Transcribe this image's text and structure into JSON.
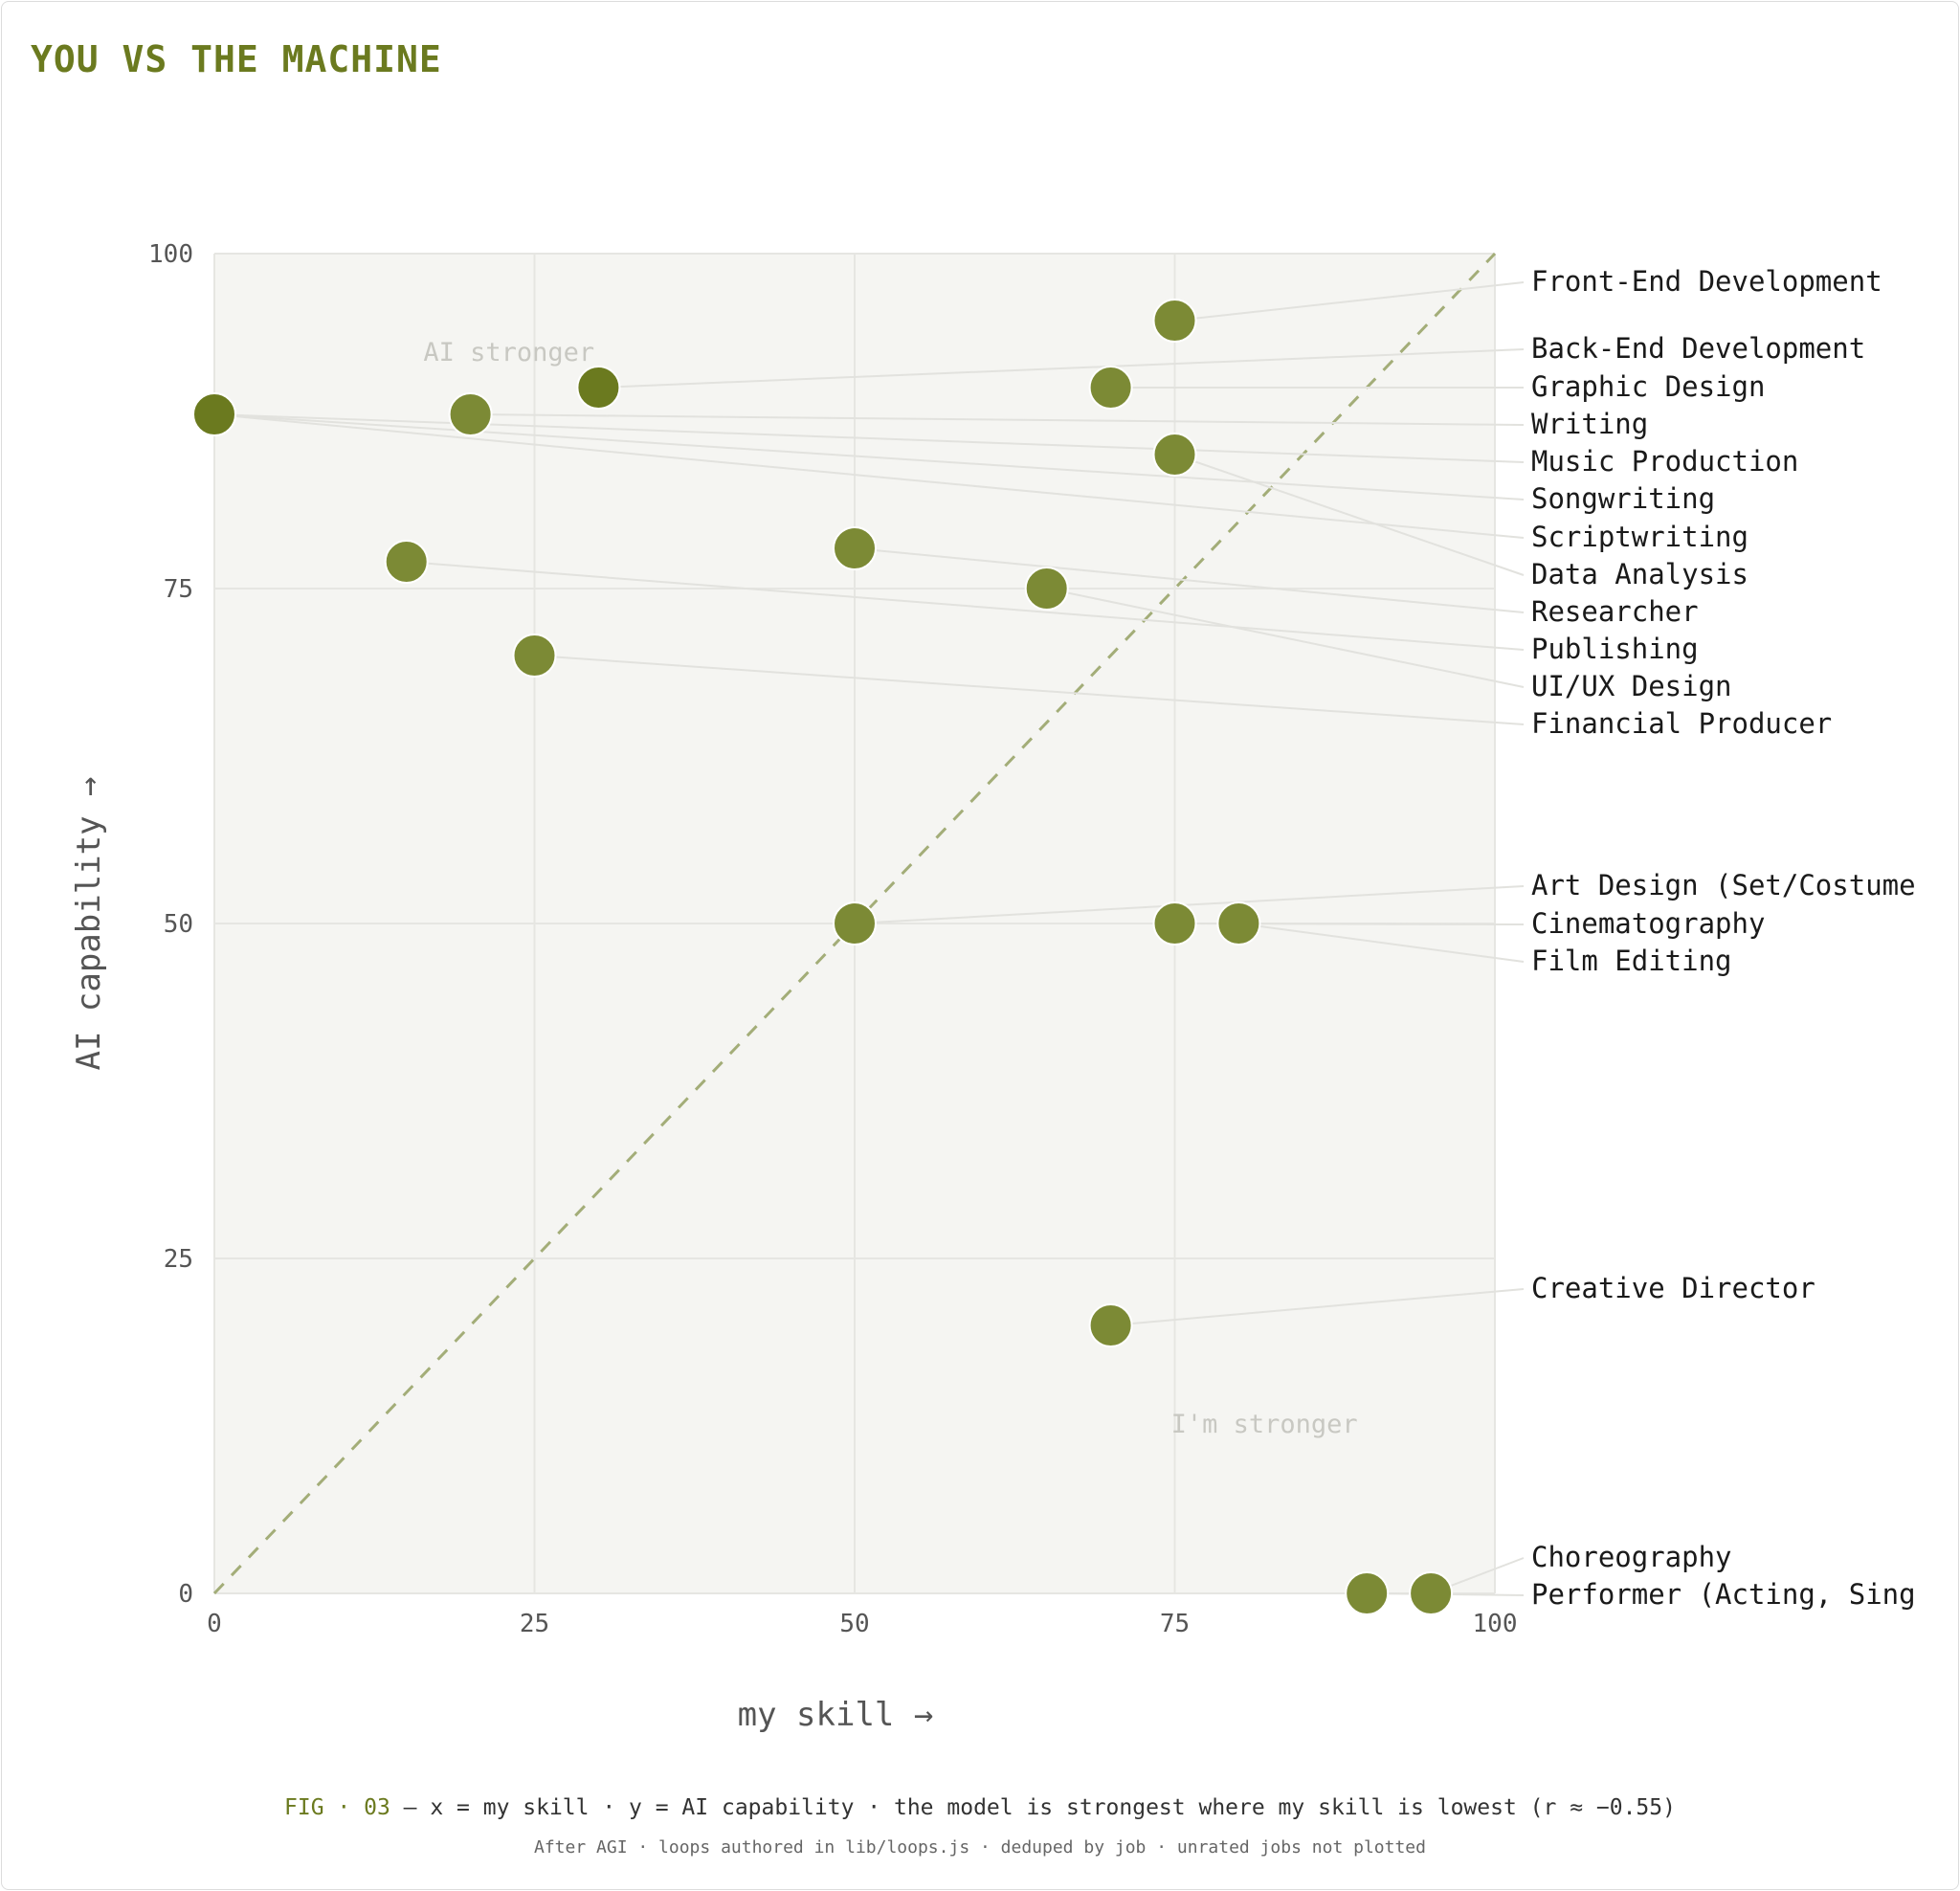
{
  "page": {
    "title": "YOU VS THE MACHINE",
    "caption_fig": "FIG · 03",
    "caption_text": " — x = my skill · y = AI capability · the model is strongest where my skill is lowest (r ≈ −0.55)",
    "footnote": "After AGI · loops authored in lib/loops.js · deduped by job · unrated jobs not plotted"
  },
  "colors": {
    "accent": "#6b7a1f",
    "point": "#7c8a35",
    "point_dark": "#6b7a1f",
    "diagonal": "#a3ad78",
    "plot_bg": "#f5f5f2",
    "grid": "#e6e6e2",
    "quadrant_text": "#c8c8c2"
  },
  "chart_data": {
    "type": "scatter",
    "xlabel": "my skill →",
    "ylabel": "AI capability →",
    "xlim": [
      0,
      100
    ],
    "ylim": [
      0,
      100
    ],
    "xticks": [
      "0",
      "25",
      "50",
      "75",
      "100"
    ],
    "yticks": [
      "0",
      "25",
      "50",
      "75",
      "100"
    ],
    "grid": true,
    "reference_line": "y = x",
    "quadrant_labels": {
      "upper_left": "AI stronger",
      "lower_right": "I'm stronger"
    },
    "points": [
      {
        "label": "Front-End Development",
        "x": 75,
        "y": 95
      },
      {
        "label": "Back-End Development",
        "x": 30,
        "y": 90
      },
      {
        "label": "Graphic Design",
        "x": 70,
        "y": 90
      },
      {
        "label": "Writing",
        "x": 20,
        "y": 88
      },
      {
        "label": "Music Production",
        "x": 0,
        "y": 88
      },
      {
        "label": "Songwriting",
        "x": 0,
        "y": 88
      },
      {
        "label": "Scriptwriting",
        "x": 0,
        "y": 88
      },
      {
        "label": "Data Analysis",
        "x": 75,
        "y": 85
      },
      {
        "label": "Researcher",
        "x": 50,
        "y": 78
      },
      {
        "label": "Publishing",
        "x": 15,
        "y": 77
      },
      {
        "label": "UI/UX Design",
        "x": 65,
        "y": 75
      },
      {
        "label": "Financial Producer",
        "x": 25,
        "y": 70
      },
      {
        "label": "Art Design (Set/Costume",
        "x": 50,
        "y": 50
      },
      {
        "label": "Cinematography",
        "x": 75,
        "y": 50
      },
      {
        "label": "Film Editing",
        "x": 80,
        "y": 50
      },
      {
        "label": "Creative Director",
        "x": 70,
        "y": 20
      },
      {
        "label": "Choreography",
        "x": 95,
        "y": 0
      },
      {
        "label": "Performer (Acting, Sing",
        "x": 90,
        "y": 0
      }
    ]
  }
}
